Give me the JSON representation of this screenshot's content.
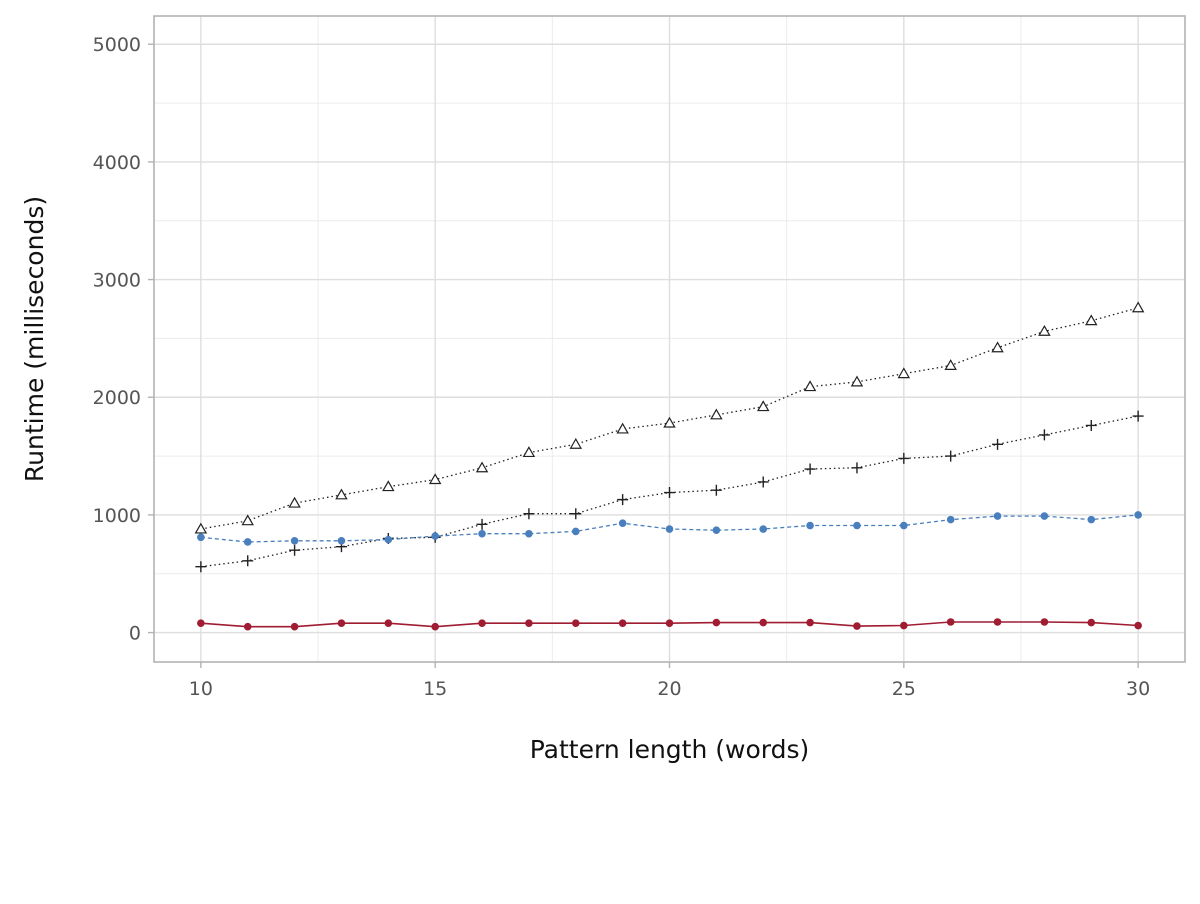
{
  "chart_data": {
    "type": "line",
    "title": "",
    "xlabel": "Pattern length (words)",
    "ylabel": "Runtime (milliseconds)",
    "xlim": [
      9,
      31
    ],
    "ylim": [
      -250,
      5240
    ],
    "x_ticks": [
      10,
      15,
      20,
      25,
      30
    ],
    "x_tick_labels": [
      "10",
      "15",
      "20",
      "25",
      "30"
    ],
    "y_ticks": [
      0,
      1000,
      2000,
      3000,
      4000,
      5000
    ],
    "y_tick_labels": [
      "0",
      "1000",
      "2000",
      "3000",
      "4000",
      "5000"
    ],
    "grid": true,
    "legend": "none",
    "x": [
      10,
      11,
      12,
      13,
      14,
      15,
      16,
      17,
      18,
      19,
      20,
      21,
      22,
      23,
      24,
      25,
      26,
      27,
      28,
      29,
      30
    ],
    "series": [
      {
        "marker": "triangle",
        "line_style": "dotted",
        "color": "#222222",
        "values": [
          880,
          950,
          1100,
          1170,
          1240,
          1300,
          1400,
          1530,
          1600,
          1730,
          1780,
          1850,
          1920,
          2090,
          2130,
          2200,
          2270,
          2420,
          2560,
          2650,
          2760
        ]
      },
      {
        "marker": "plus",
        "line_style": "dotted",
        "color": "#222222",
        "values": [
          560,
          610,
          700,
          730,
          800,
          810,
          920,
          1010,
          1010,
          1130,
          1190,
          1210,
          1280,
          1390,
          1400,
          1480,
          1500,
          1600,
          1680,
          1760,
          1840
        ]
      },
      {
        "marker": "circle",
        "line_style": "dashed",
        "color": "#4a7fbe",
        "values": [
          810,
          770,
          780,
          780,
          790,
          820,
          840,
          840,
          860,
          930,
          880,
          870,
          880,
          910,
          910,
          910,
          960,
          990,
          990,
          960,
          1000
        ]
      },
      {
        "marker": "circle",
        "line_style": "solid",
        "color": "#a01c32",
        "values": [
          80,
          50,
          50,
          80,
          80,
          50,
          80,
          80,
          80,
          80,
          80,
          85,
          85,
          85,
          55,
          60,
          90,
          90,
          90,
          85,
          60
        ]
      }
    ]
  }
}
